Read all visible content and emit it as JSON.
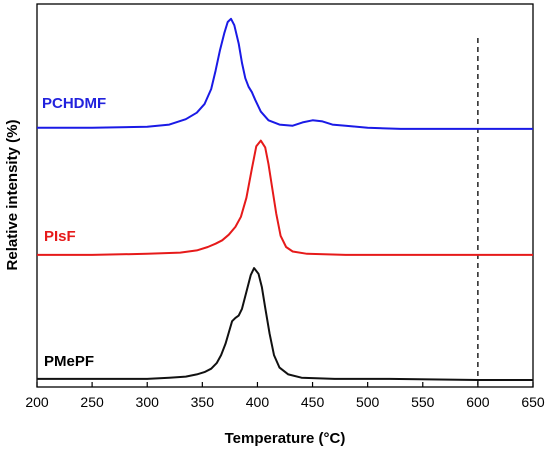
{
  "chart_data": {
    "type": "line",
    "title": "",
    "xlabel": "Temperature (°C)",
    "ylabel": "Relative intensity (%)",
    "xlim": [
      200,
      650
    ],
    "x_ticks": [
      200,
      250,
      300,
      350,
      400,
      450,
      500,
      550,
      600,
      650
    ],
    "y_ticks_visible": false,
    "grid": false,
    "legend": "inline labels at left",
    "reference_line": {
      "x": 600,
      "style": "dashed"
    },
    "series": [
      {
        "name": "PCHDMF",
        "color": "#1a1ae6",
        "label_color": "#2222dd",
        "points": [
          [
            200,
            2
          ],
          [
            250,
            2
          ],
          [
            300,
            3
          ],
          [
            320,
            5
          ],
          [
            335,
            10
          ],
          [
            345,
            16
          ],
          [
            352,
            24
          ],
          [
            358,
            38
          ],
          [
            362,
            55
          ],
          [
            366,
            74
          ],
          [
            370,
            90
          ],
          [
            373,
            100
          ],
          [
            376,
            103
          ],
          [
            379,
            97
          ],
          [
            383,
            80
          ],
          [
            386,
            62
          ],
          [
            389,
            48
          ],
          [
            392,
            40
          ],
          [
            395,
            35
          ],
          [
            398,
            28
          ],
          [
            403,
            17
          ],
          [
            410,
            9
          ],
          [
            420,
            5
          ],
          [
            432,
            4
          ],
          [
            441,
            7
          ],
          [
            450,
            9
          ],
          [
            459,
            8
          ],
          [
            468,
            5
          ],
          [
            480,
            4
          ],
          [
            500,
            2
          ],
          [
            530,
            1
          ],
          [
            560,
            1
          ],
          [
            600,
            1
          ],
          [
            650,
            1
          ]
        ]
      },
      {
        "name": "PIsF",
        "color": "#e61a1a",
        "label_color": "#e61a1a",
        "points": [
          [
            200,
            1
          ],
          [
            250,
            1
          ],
          [
            300,
            2
          ],
          [
            330,
            3
          ],
          [
            345,
            5
          ],
          [
            355,
            8
          ],
          [
            362,
            11
          ],
          [
            368,
            14
          ],
          [
            374,
            19
          ],
          [
            380,
            26
          ],
          [
            385,
            35
          ],
          [
            390,
            52
          ],
          [
            395,
            78
          ],
          [
            399,
            98
          ],
          [
            403,
            103
          ],
          [
            407,
            97
          ],
          [
            410,
            82
          ],
          [
            413,
            63
          ],
          [
            417,
            38
          ],
          [
            421,
            18
          ],
          [
            426,
            8
          ],
          [
            432,
            4
          ],
          [
            445,
            2
          ],
          [
            480,
            1
          ],
          [
            520,
            1
          ],
          [
            560,
            1
          ],
          [
            600,
            1
          ],
          [
            650,
            1
          ]
        ]
      },
      {
        "name": "PMePF",
        "color": "#111111",
        "label_color": "#000000",
        "points": [
          [
            200,
            1
          ],
          [
            250,
            1
          ],
          [
            300,
            1
          ],
          [
            320,
            2
          ],
          [
            335,
            3
          ],
          [
            345,
            5
          ],
          [
            352,
            7
          ],
          [
            358,
            10
          ],
          [
            363,
            15
          ],
          [
            367,
            22
          ],
          [
            371,
            32
          ],
          [
            374,
            42
          ],
          [
            377,
            52
          ],
          [
            380,
            55
          ],
          [
            383,
            57
          ],
          [
            386,
            63
          ],
          [
            390,
            78
          ],
          [
            394,
            93
          ],
          [
            397,
            99
          ],
          [
            401,
            94
          ],
          [
            404,
            82
          ],
          [
            407,
            64
          ],
          [
            411,
            41
          ],
          [
            415,
            22
          ],
          [
            420,
            11
          ],
          [
            428,
            5
          ],
          [
            440,
            2
          ],
          [
            470,
            1
          ],
          [
            520,
            1
          ],
          [
            600,
            0
          ],
          [
            650,
            0
          ]
        ]
      }
    ]
  }
}
